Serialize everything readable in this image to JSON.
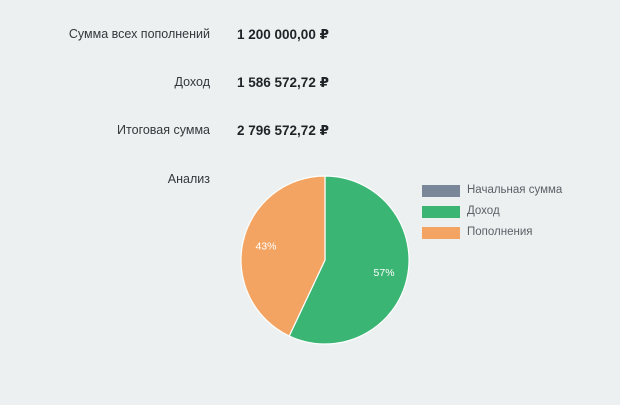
{
  "summary": {
    "total_deposits_label": "Сумма всех пополнений",
    "total_deposits_value": "1 200 000,00 ₽",
    "income_label": "Доход",
    "income_value": "1 586 572,72 ₽",
    "final_label": "Итоговая сумма",
    "final_value": "2 796 572,72 ₽",
    "analysis_label": "Анализ"
  },
  "chart_data": {
    "type": "pie",
    "title": "",
    "legend_position": "right",
    "slices": [
      {
        "name": "Начальная сумма",
        "value": 0,
        "label": "0%",
        "color": "#7a8798"
      },
      {
        "name": "Доход",
        "value": 57,
        "label": "57%",
        "color": "#3bb573"
      },
      {
        "name": "Пополнения",
        "value": 43,
        "label": "43%",
        "color": "#f4a462"
      }
    ]
  }
}
